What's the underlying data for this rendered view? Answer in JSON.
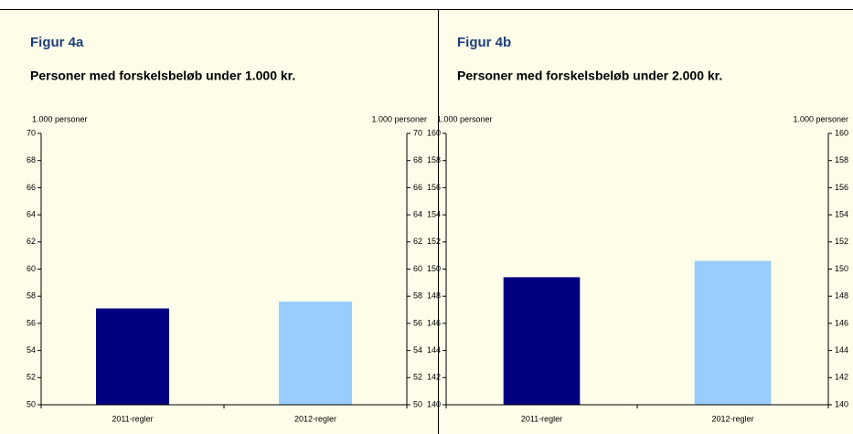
{
  "chart_data": [
    {
      "type": "bar",
      "title": "Figur 4a",
      "subtitle": "Personer med forskelsbeløb under 1.000 kr.",
      "y_label": "1.000 personer",
      "y2_label": "1.000 personer",
      "categories": [
        "2011-regler",
        "2012-regler"
      ],
      "values": [
        57.1,
        57.6
      ],
      "colors": [
        "#000080",
        "#99ccff"
      ],
      "ylim": [
        50,
        70
      ],
      "yticks": [
        50,
        52,
        54,
        56,
        58,
        60,
        62,
        64,
        66,
        68,
        70
      ],
      "y2lim": [
        50,
        70
      ],
      "y2ticks": [
        50,
        52,
        54,
        56,
        58,
        60,
        62,
        64,
        66,
        68,
        70
      ]
    },
    {
      "type": "bar",
      "title": "Figur 4b",
      "subtitle": "Personer med forskelsbeløb under 2.000 kr.",
      "y_label": "1.000 personer",
      "y2_label": "1.000 personer",
      "categories": [
        "2011-regler",
        "2012-regler"
      ],
      "values": [
        149.4,
        150.6
      ],
      "colors": [
        "#000080",
        "#99ccff"
      ],
      "ylim": [
        140,
        160
      ],
      "yticks": [
        140,
        142,
        144,
        146,
        148,
        150,
        152,
        154,
        156,
        158,
        160
      ],
      "y2lim": [
        140,
        160
      ],
      "y2ticks": [
        140,
        142,
        144,
        146,
        148,
        150,
        152,
        154,
        156,
        158,
        160
      ]
    }
  ]
}
